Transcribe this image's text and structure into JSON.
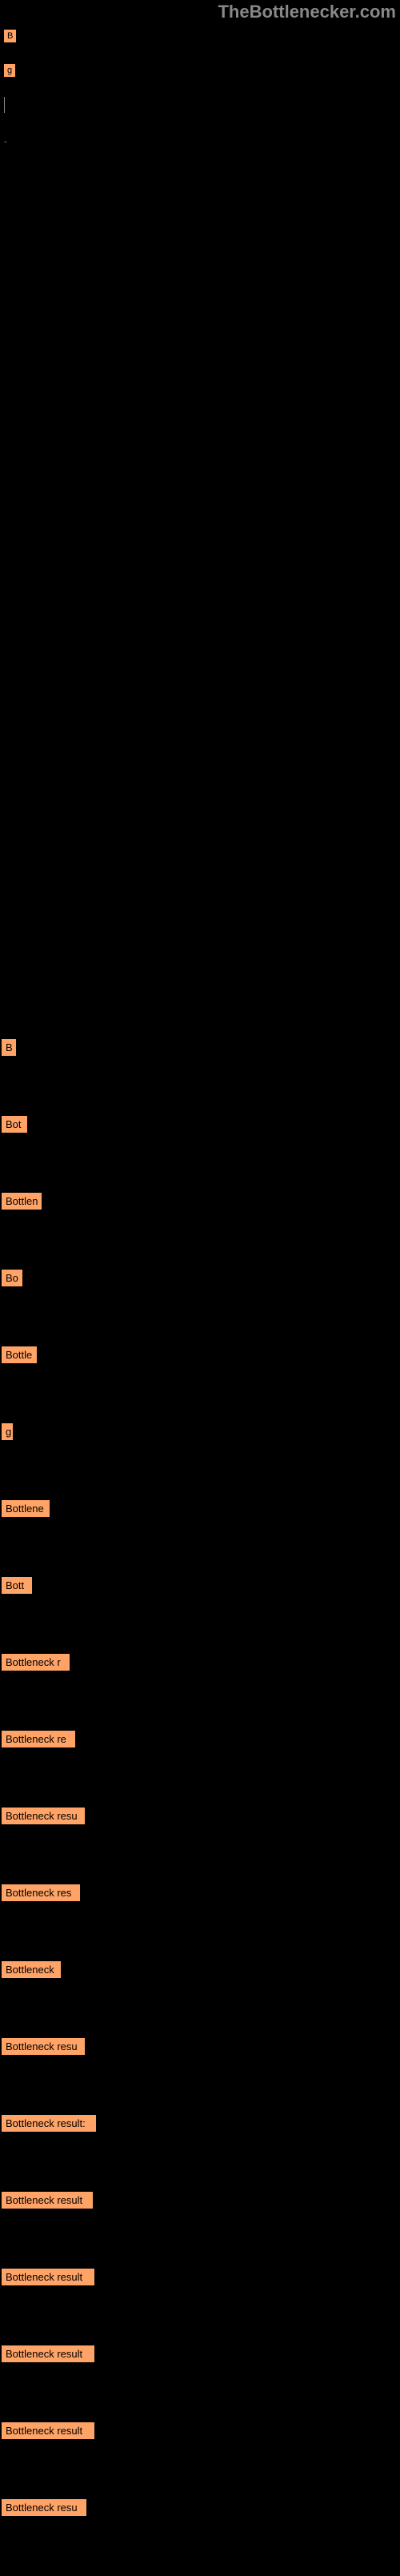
{
  "header": {
    "logo": "TheBottlenecker.com"
  },
  "top_bars": {
    "bar1": "B",
    "bar2": "g",
    "dash": "-"
  },
  "bottleneck_items": [
    {
      "text": "B",
      "width": 18
    },
    {
      "text": "Bot",
      "width": 32
    },
    {
      "text": "Bottlen",
      "width": 50
    },
    {
      "text": "Bo",
      "width": 26
    },
    {
      "text": "Bottle",
      "width": 44
    },
    {
      "text": "g",
      "width": 14
    },
    {
      "text": "Bottlene",
      "width": 60
    },
    {
      "text": "Bott",
      "width": 38
    },
    {
      "text": "Bottleneck r",
      "width": 85
    },
    {
      "text": "Bottleneck re",
      "width": 92
    },
    {
      "text": "Bottleneck resu",
      "width": 104
    },
    {
      "text": "Bottleneck res",
      "width": 98
    },
    {
      "text": "Bottleneck",
      "width": 74
    },
    {
      "text": "Bottleneck resu",
      "width": 104
    },
    {
      "text": "Bottleneck result:",
      "width": 118
    },
    {
      "text": "Bottleneck result",
      "width": 114
    },
    {
      "text": "Bottleneck result",
      "width": 116
    },
    {
      "text": "Bottleneck result",
      "width": 116
    },
    {
      "text": "Bottleneck result",
      "width": 116
    },
    {
      "text": "Bottleneck resu",
      "width": 106
    }
  ],
  "colors": {
    "background": "#000000",
    "bar_bg": "#ffa366",
    "logo_color": "#888888"
  }
}
